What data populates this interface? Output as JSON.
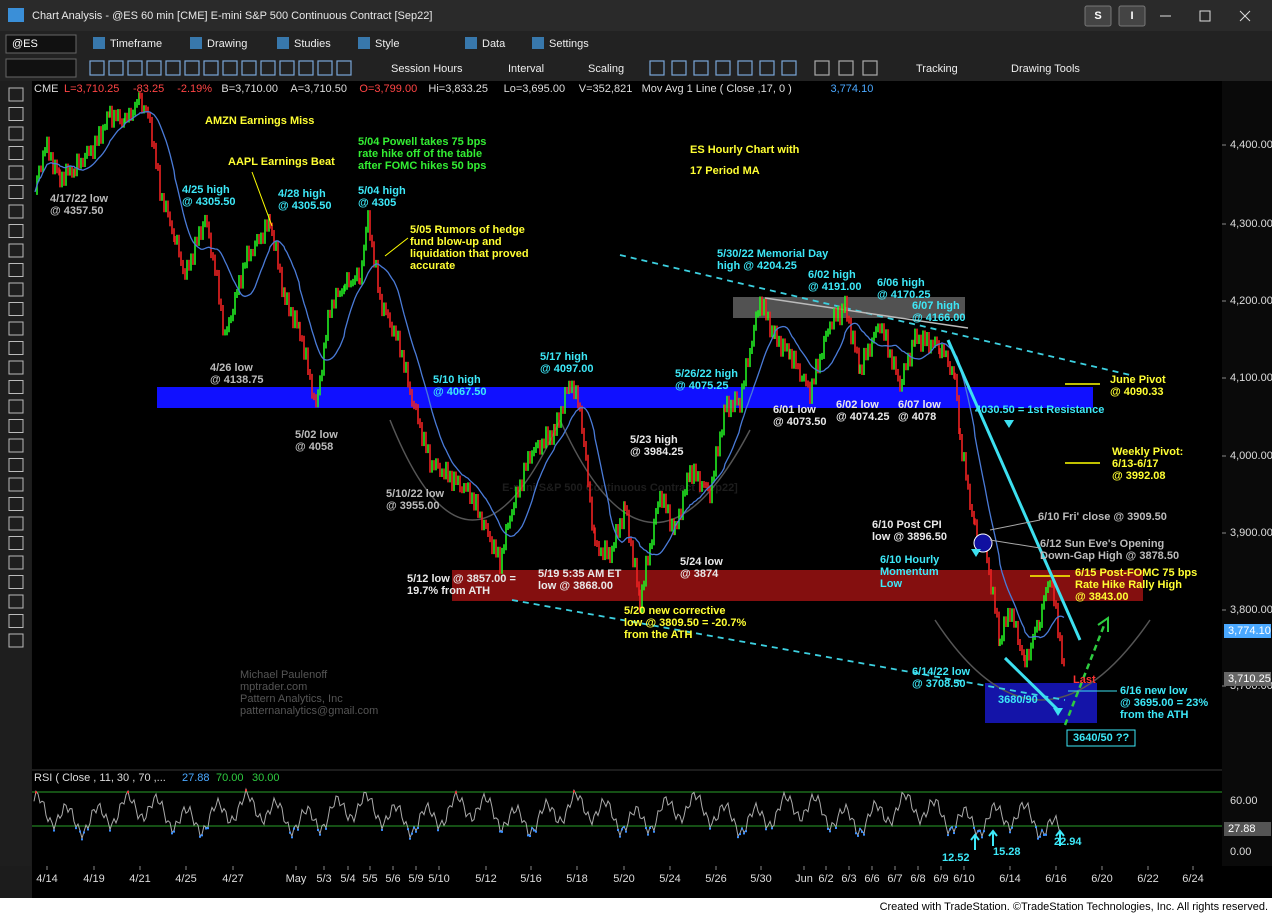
{
  "window": {
    "title": "Chart Analysis - @ES 60 min [CME] E-mini S&P 500 Continuous Contract [Sep22]",
    "buttons": [
      "S",
      "I"
    ]
  },
  "toolbar": {
    "symbol": "@ES",
    "menus": [
      "Timeframe",
      "Drawing",
      "Studies",
      "Style",
      "Data",
      "Settings"
    ],
    "tools": [
      "Session Hours",
      "Interval",
      "Scaling",
      "Tracking",
      "Drawing Tools"
    ]
  },
  "status": {
    "exchange": "CME",
    "items": [
      "L=3,710.25",
      "-83.25",
      "-2.19%",
      "B=3,710.00",
      "A=3,710.50",
      "O=3,799.00",
      "Hi=3,833.25",
      "Lo=3,695.00",
      "V=352,821"
    ],
    "study": "Mov Avg 1 Line ( Close ,17, 0 )",
    "study_value": "3,774.10"
  },
  "price_axis": {
    "labels": [
      "4,400.00",
      "4,300.00",
      "4,200.00",
      "4,100.00",
      "4,000.00",
      "3,900.00",
      "3,800.00",
      "3,700.00"
    ],
    "last_tags": [
      "3,774.10",
      "3,710.25"
    ]
  },
  "time_axis": {
    "labels": [
      "4/14",
      "4/19",
      "4/21",
      "4/25",
      "4/27",
      "May",
      "5/3",
      "5/4",
      "5/5",
      "5/6",
      "5/9",
      "5/10",
      "5/12",
      "5/16",
      "5/18",
      "5/20",
      "5/24",
      "5/26",
      "5/30",
      "Jun",
      "6/2",
      "6/3",
      "6/6",
      "6/7",
      "6/8",
      "6/9",
      "6/10",
      "6/14",
      "6/16",
      "6/20",
      "6/22",
      "6/24"
    ]
  },
  "watermark": {
    "symbol": "@ES",
    "name": "E-mini S&P 500 Continuous Contract [Sep22]"
  },
  "annotations": [
    {
      "lines": [
        "AMZN Earnings Miss"
      ]
    },
    {
      "lines": [
        "AAPL Earnings Beat"
      ]
    },
    {
      "lines": [
        "5/04 Powell takes 75 bps",
        "rate hike off of the table",
        "after FOMC hikes 50 bps"
      ]
    },
    {
      "lines": [
        "ES Hourly Chart with",
        "17 Period MA"
      ]
    },
    {
      "lines": [
        "4/17/22 low",
        "@ 4357.50"
      ]
    },
    {
      "lines": [
        "4/25 high",
        "@ 4305.50"
      ]
    },
    {
      "lines": [
        "4/28 high",
        "@ 4305.50"
      ]
    },
    {
      "lines": [
        "5/04 high",
        "@ 4305"
      ]
    },
    {
      "lines": [
        "5/05 Rumors of hedge",
        "fund blow-up and",
        "liquidation that proved",
        "accurate"
      ]
    },
    {
      "lines": [
        "5/30/22 Memorial Day",
        "high @ 4204.25"
      ]
    },
    {
      "lines": [
        "6/02 high",
        "@ 4191.00"
      ]
    },
    {
      "lines": [
        "6/06 high",
        "@ 4170.25"
      ]
    },
    {
      "lines": [
        "6/07 high",
        "@ 4166.00"
      ]
    },
    {
      "lines": [
        "June Pivot",
        "@ 4090.33"
      ]
    },
    {
      "lines": [
        "4/26 low",
        "@ 4138.75"
      ]
    },
    {
      "lines": [
        "5/17 high",
        "@ 4097.00"
      ]
    },
    {
      "lines": [
        "5/26/22 high",
        "@ 4075.25"
      ]
    },
    {
      "lines": [
        "5/10 high",
        "@ 4067.50"
      ]
    },
    {
      "lines": [
        "6/01 low",
        "@ 4073.50"
      ]
    },
    {
      "lines": [
        "6/02 low",
        "@ 4074.25"
      ]
    },
    {
      "lines": [
        "6/07 low",
        "@ 4078"
      ]
    },
    {
      "lines": [
        "4030.50 = 1st Resistance"
      ]
    },
    {
      "lines": [
        "5/02 low",
        "@ 4058"
      ]
    },
    {
      "lines": [
        "5/23 high",
        "@ 3984.25"
      ]
    },
    {
      "lines": [
        "Weekly Pivot:",
        "6/13-6/17",
        "@ 3992.08"
      ]
    },
    {
      "lines": [
        "5/10/22 low",
        "@ 3955.00"
      ]
    },
    {
      "lines": [
        "6/10 Fri' close @ 3909.50"
      ]
    },
    {
      "lines": [
        "6/10 Post CPI",
        "low @ 3896.50"
      ]
    },
    {
      "lines": [
        "6/12 Sun Eve's Opening",
        "Down-Gap High @ 3878.50"
      ]
    },
    {
      "lines": [
        "6/10 Hourly",
        "Momentum",
        "Low"
      ]
    },
    {
      "lines": [
        "5/24 low",
        "@ 3874"
      ]
    },
    {
      "lines": [
        "6/15 Post-FOMC 75 bps",
        "Rate Hike Rally High",
        "@ 3843.00"
      ]
    },
    {
      "lines": [
        "5/12 low @ 3857.00 =",
        "19.7% from ATH"
      ]
    },
    {
      "lines": [
        "5/19 5:35 AM ET",
        "low @ 3868.00"
      ]
    },
    {
      "lines": [
        "5/20 new corrective",
        "low @ 3809.50 = -20.7%",
        "from the ATH"
      ]
    },
    {
      "lines": [
        "Michael Paulenoff",
        "mptrader.com",
        "Pattern Analytics, Inc",
        "patternanalytics@gmail.com"
      ]
    },
    {
      "lines": [
        "6/14/22 low",
        "@ 3708.50"
      ]
    },
    {
      "lines": [
        "Last"
      ]
    },
    {
      "lines": [
        "6/16 new low",
        "@ 3695.00 = 23%",
        "from the ATH"
      ]
    },
    {
      "lines": [
        "3680/90"
      ]
    },
    {
      "lines": [
        "3640/50 ??"
      ]
    }
  ],
  "rsi": {
    "label": "RSI ( Close , 11, 30 , 70 ,...",
    "values": [
      "27.88",
      "70.00",
      "30.00"
    ],
    "axis": [
      "60.00",
      "0.00"
    ],
    "tag": "27.88",
    "notes": [
      "12.52",
      "15.28",
      "22.94"
    ]
  },
  "footer": "Created with TradeStation. ©TradeStation Technologies, Inc. All rights reserved."
}
